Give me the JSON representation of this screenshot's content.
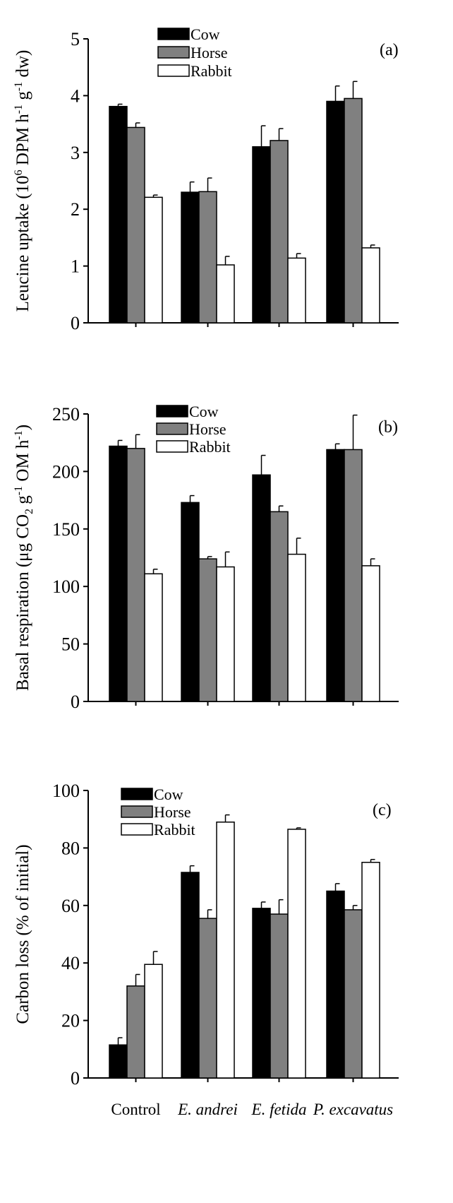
{
  "figure": {
    "colors": {
      "Cow": "#000000",
      "Horse": "#808080",
      "Rabbit": "#ffffff"
    },
    "category_labels": [
      "Control",
      "E. andrei",
      "E.  fetida",
      "P. excavatus"
    ]
  },
  "chart_data": [
    {
      "type": "bar",
      "panel": "(a)",
      "ylabel_parts": [
        "Leucine uptake (10",
        "6",
        " DPM h",
        "-1",
        " g",
        "-1",
        " dw)"
      ],
      "ylim": [
        0,
        5
      ],
      "yticks": [
        0,
        1,
        2,
        3,
        4,
        5
      ],
      "categories": [
        "Control",
        "E. andrei",
        "E. fetida",
        "P. excavatus"
      ],
      "legend": [
        "Cow",
        "Horse",
        "Rabbit"
      ],
      "legend_position": "top-center",
      "series": [
        {
          "name": "Cow",
          "values": [
            3.81,
            2.3,
            3.1,
            3.9
          ],
          "errors": [
            0.04,
            0.18,
            0.37,
            0.27
          ]
        },
        {
          "name": "Horse",
          "values": [
            3.44,
            2.31,
            3.21,
            3.95
          ],
          "errors": [
            0.08,
            0.24,
            0.21,
            0.3
          ]
        },
        {
          "name": "Rabbit",
          "values": [
            2.21,
            1.02,
            1.14,
            1.32
          ],
          "errors": [
            0.04,
            0.15,
            0.08,
            0.05
          ]
        }
      ]
    },
    {
      "type": "bar",
      "panel": "(b)",
      "ylabel_parts": [
        "Basal respiration (μg CO",
        "2",
        " g",
        "-1",
        " OM h",
        "-1",
        ")"
      ],
      "ylim": [
        0,
        250
      ],
      "yticks": [
        0,
        50,
        100,
        150,
        200,
        250
      ],
      "categories": [
        "Control",
        "E. andrei",
        "E. fetida",
        "P. excavatus"
      ],
      "legend": [
        "Cow",
        "Horse",
        "Rabbit"
      ],
      "legend_position": "top-center",
      "series": [
        {
          "name": "Cow",
          "values": [
            222,
            173,
            197,
            219
          ],
          "errors": [
            5,
            6,
            17,
            5
          ]
        },
        {
          "name": "Horse",
          "values": [
            220,
            124,
            165,
            219
          ],
          "errors": [
            12,
            2,
            5,
            30
          ]
        },
        {
          "name": "Rabbit",
          "values": [
            111,
            117,
            128,
            118
          ],
          "errors": [
            4,
            13,
            14,
            6
          ]
        }
      ]
    },
    {
      "type": "bar",
      "panel": "(c)",
      "ylabel_parts": [
        "Carbon loss (% of initial)"
      ],
      "ylim": [
        0,
        100
      ],
      "yticks": [
        0,
        20,
        40,
        60,
        80,
        100
      ],
      "categories": [
        "Control",
        "E. andrei",
        "E. fetida",
        "P. excavatus"
      ],
      "legend": [
        "Cow",
        "Horse",
        "Rabbit"
      ],
      "legend_position": "top-left",
      "series": [
        {
          "name": "Cow",
          "values": [
            11.5,
            71.5,
            59,
            65
          ],
          "errors": [
            2.5,
            2.3,
            2.2,
            2.6
          ]
        },
        {
          "name": "Horse",
          "values": [
            32,
            55.5,
            57,
            58.5
          ],
          "errors": [
            4,
            3,
            5,
            1.5
          ]
        },
        {
          "name": "Rabbit",
          "values": [
            39.5,
            89,
            86.5,
            75
          ],
          "errors": [
            4.5,
            2.5,
            0.5,
            1
          ]
        }
      ]
    }
  ]
}
